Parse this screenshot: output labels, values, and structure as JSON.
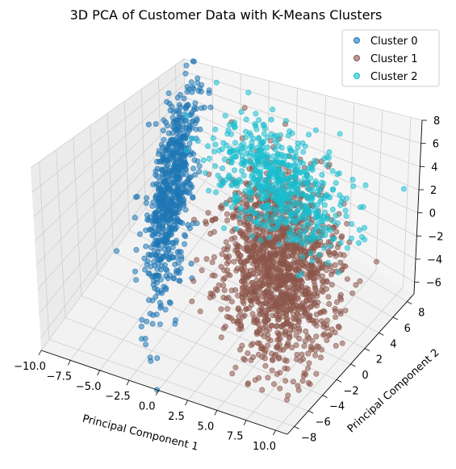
{
  "chart_data": {
    "type": "scatter",
    "projection": "3d",
    "title": "3D PCA of Customer Data with K-Means Clusters",
    "xlabel": "Principal Component 1",
    "ylabel": "Principal Component 2",
    "zlabel": "",
    "xlim": [
      -10,
      11
    ],
    "ylim": [
      -9,
      9
    ],
    "zlim": [
      -7,
      8
    ],
    "xticks": [
      "−10.0",
      "−7.5",
      "−5.0",
      "−2.5",
      "0.0",
      "2.5",
      "5.0",
      "7.5",
      "10.0"
    ],
    "yticks": [
      "−8",
      "−6",
      "−4",
      "−2",
      "0",
      "2",
      "4",
      "6",
      "8"
    ],
    "zticks": [
      "−6",
      "−4",
      "−2",
      "0",
      "2",
      "4",
      "6",
      "8"
    ],
    "grid": true,
    "legend_position": "top-right",
    "series": [
      {
        "name": "Cluster 0",
        "color": "#1f77b4",
        "n_points": 700,
        "center": [
          -5.5,
          1.0,
          0.5
        ],
        "spread": [
          0.8,
          6.0,
          1.2
        ],
        "points": [
          [
            -8.1,
            2.2,
            6.0
          ],
          [
            -6.3,
            1.6,
            3.4
          ],
          [
            -4.9,
            1.0,
            1.5
          ],
          [
            -3.4,
            0.4,
            -1.4
          ],
          [
            -2.7,
            -0.5,
            -3.8
          ],
          [
            -6.3,
            3.2,
            5.9
          ],
          [
            -1.2,
            -2.6,
            -2.7
          ],
          [
            -6.7,
            2.8,
            2.5
          ],
          [
            -4.0,
            0.5,
            0.6
          ],
          [
            -3.0,
            -0.4,
            -0.2
          ]
        ]
      },
      {
        "name": "Cluster 1",
        "color": "#8c564b",
        "n_points": 1400,
        "center": [
          4.5,
          0.0,
          -1.0
        ],
        "spread": [
          2.5,
          5.5,
          1.6
        ],
        "points": [
          [
            3.0,
            4.6,
            0.4
          ],
          [
            5.4,
            0.5,
            -1.2
          ],
          [
            7.3,
            -3.1,
            -2.8
          ],
          [
            2.3,
            2.1,
            1.2
          ],
          [
            6.0,
            -1.2,
            -2.4
          ],
          [
            4.1,
            2.6,
            0.8
          ],
          [
            8.1,
            -4.8,
            -3.6
          ],
          [
            3.4,
            1.0,
            -0.6
          ],
          [
            6.6,
            -0.4,
            -1.7
          ],
          [
            1.6,
            5.8,
            2.2
          ]
        ]
      },
      {
        "name": "Cluster 2",
        "color": "#17becf",
        "n_points": 600,
        "center": [
          2.0,
          4.0,
          2.5
        ],
        "spread": [
          2.8,
          3.0,
          1.6
        ],
        "points": [
          [
            -1.2,
            7.5,
            5.2
          ],
          [
            1.5,
            5.0,
            3.6
          ],
          [
            2.6,
            3.4,
            2.3
          ],
          [
            4.0,
            2.0,
            1.2
          ],
          [
            -0.1,
            6.3,
            4.8
          ],
          [
            3.4,
            2.7,
            1.9
          ],
          [
            0.8,
            5.5,
            3.9
          ],
          [
            5.2,
            1.5,
            0.6
          ],
          [
            -2.3,
            4.1,
            2.8
          ],
          [
            2.0,
            3.9,
            3.0
          ]
        ]
      }
    ]
  }
}
